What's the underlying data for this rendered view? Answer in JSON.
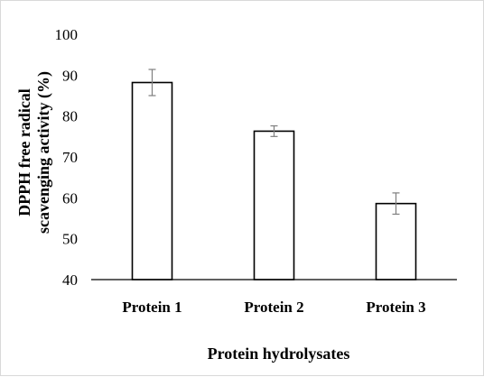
{
  "chart_data": {
    "type": "bar",
    "categories": [
      "Protein 1",
      "Protein 2",
      "Protein 3"
    ],
    "values": [
      88.2,
      76.3,
      58.6
    ],
    "errors": [
      3.2,
      1.3,
      2.6
    ],
    "xlabel": "Protein hydrolysates",
    "ylabel_lines": [
      "DPPH free radical",
      "scavenging activity (%)"
    ],
    "ylim": [
      40,
      100
    ],
    "yticks": [
      40,
      50,
      60,
      70,
      80,
      90,
      100
    ],
    "grid": false,
    "legend": "none",
    "bar_fill": "#ffffff",
    "bar_stroke": "#000000",
    "error_color": "#7f7f7f"
  }
}
